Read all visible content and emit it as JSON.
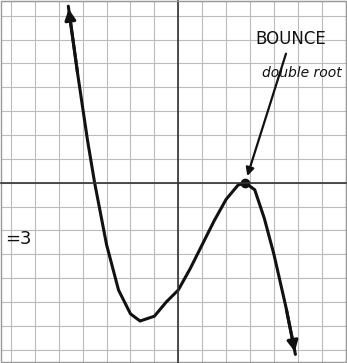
{
  "chart_data": {
    "type": "line",
    "x": [
      -4.6,
      -4.2,
      -3.8,
      -3.5,
      -3.0,
      -2.5,
      -2.0,
      -1.6,
      -1.0,
      -0.5,
      0,
      0.5,
      1.0,
      1.5,
      2.0,
      2.5,
      2.8,
      3.2,
      3.6,
      4.0,
      4.5,
      4.9
    ],
    "values": [
      7.4,
      4.5,
      1.8,
      0,
      -2.6,
      -4.5,
      -5.5,
      -5.8,
      -5.6,
      -5.0,
      -4.5,
      -3.6,
      -2.6,
      -1.6,
      -0.7,
      -0.1,
      0,
      -0.3,
      -1.5,
      -3.0,
      -5.2,
      -7.2
    ],
    "color": "#111111",
    "xlim": [
      -7.4,
      7.0
    ],
    "ylim": [
      -7.5,
      7.6
    ],
    "xticks": [
      -7,
      -6,
      -5,
      -4,
      -3,
      -2,
      -1,
      0,
      1,
      2,
      3,
      4,
      5,
      6,
      7
    ],
    "yticks": [
      -7,
      -6,
      -5,
      -4,
      -3,
      -2,
      -1,
      0,
      1,
      2,
      3,
      4,
      5,
      6,
      7
    ],
    "grid": true,
    "tick_labels": false,
    "annotations": [
      "BOUNCE",
      "double root",
      "=3"
    ]
  }
}
